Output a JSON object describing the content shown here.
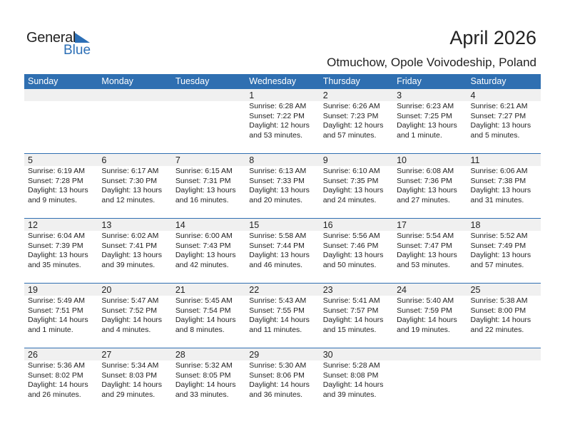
{
  "logo": {
    "text_general": "General",
    "text_blue": "Blue"
  },
  "title": "April 2026",
  "location": "Otmuchow, Opole Voivodeship, Poland",
  "colors": {
    "header": "#2f6fb1",
    "accent": "#2c6fb6"
  },
  "weekdays": [
    "Sunday",
    "Monday",
    "Tuesday",
    "Wednesday",
    "Thursday",
    "Friday",
    "Saturday"
  ],
  "weeks": [
    [
      null,
      null,
      null,
      {
        "day": "1",
        "sunrise": "Sunrise: 6:28 AM",
        "sunset": "Sunset: 7:22 PM",
        "daylight1": "Daylight: 12 hours",
        "daylight2": "and 53 minutes."
      },
      {
        "day": "2",
        "sunrise": "Sunrise: 6:26 AM",
        "sunset": "Sunset: 7:23 PM",
        "daylight1": "Daylight: 12 hours",
        "daylight2": "and 57 minutes."
      },
      {
        "day": "3",
        "sunrise": "Sunrise: 6:23 AM",
        "sunset": "Sunset: 7:25 PM",
        "daylight1": "Daylight: 13 hours",
        "daylight2": "and 1 minute."
      },
      {
        "day": "4",
        "sunrise": "Sunrise: 6:21 AM",
        "sunset": "Sunset: 7:27 PM",
        "daylight1": "Daylight: 13 hours",
        "daylight2": "and 5 minutes."
      }
    ],
    [
      {
        "day": "5",
        "sunrise": "Sunrise: 6:19 AM",
        "sunset": "Sunset: 7:28 PM",
        "daylight1": "Daylight: 13 hours",
        "daylight2": "and 9 minutes."
      },
      {
        "day": "6",
        "sunrise": "Sunrise: 6:17 AM",
        "sunset": "Sunset: 7:30 PM",
        "daylight1": "Daylight: 13 hours",
        "daylight2": "and 12 minutes."
      },
      {
        "day": "7",
        "sunrise": "Sunrise: 6:15 AM",
        "sunset": "Sunset: 7:31 PM",
        "daylight1": "Daylight: 13 hours",
        "daylight2": "and 16 minutes."
      },
      {
        "day": "8",
        "sunrise": "Sunrise: 6:13 AM",
        "sunset": "Sunset: 7:33 PM",
        "daylight1": "Daylight: 13 hours",
        "daylight2": "and 20 minutes."
      },
      {
        "day": "9",
        "sunrise": "Sunrise: 6:10 AM",
        "sunset": "Sunset: 7:35 PM",
        "daylight1": "Daylight: 13 hours",
        "daylight2": "and 24 minutes."
      },
      {
        "day": "10",
        "sunrise": "Sunrise: 6:08 AM",
        "sunset": "Sunset: 7:36 PM",
        "daylight1": "Daylight: 13 hours",
        "daylight2": "and 27 minutes."
      },
      {
        "day": "11",
        "sunrise": "Sunrise: 6:06 AM",
        "sunset": "Sunset: 7:38 PM",
        "daylight1": "Daylight: 13 hours",
        "daylight2": "and 31 minutes."
      }
    ],
    [
      {
        "day": "12",
        "sunrise": "Sunrise: 6:04 AM",
        "sunset": "Sunset: 7:39 PM",
        "daylight1": "Daylight: 13 hours",
        "daylight2": "and 35 minutes."
      },
      {
        "day": "13",
        "sunrise": "Sunrise: 6:02 AM",
        "sunset": "Sunset: 7:41 PM",
        "daylight1": "Daylight: 13 hours",
        "daylight2": "and 39 minutes."
      },
      {
        "day": "14",
        "sunrise": "Sunrise: 6:00 AM",
        "sunset": "Sunset: 7:43 PM",
        "daylight1": "Daylight: 13 hours",
        "daylight2": "and 42 minutes."
      },
      {
        "day": "15",
        "sunrise": "Sunrise: 5:58 AM",
        "sunset": "Sunset: 7:44 PM",
        "daylight1": "Daylight: 13 hours",
        "daylight2": "and 46 minutes."
      },
      {
        "day": "16",
        "sunrise": "Sunrise: 5:56 AM",
        "sunset": "Sunset: 7:46 PM",
        "daylight1": "Daylight: 13 hours",
        "daylight2": "and 50 minutes."
      },
      {
        "day": "17",
        "sunrise": "Sunrise: 5:54 AM",
        "sunset": "Sunset: 7:47 PM",
        "daylight1": "Daylight: 13 hours",
        "daylight2": "and 53 minutes."
      },
      {
        "day": "18",
        "sunrise": "Sunrise: 5:52 AM",
        "sunset": "Sunset: 7:49 PM",
        "daylight1": "Daylight: 13 hours",
        "daylight2": "and 57 minutes."
      }
    ],
    [
      {
        "day": "19",
        "sunrise": "Sunrise: 5:49 AM",
        "sunset": "Sunset: 7:51 PM",
        "daylight1": "Daylight: 14 hours",
        "daylight2": "and 1 minute."
      },
      {
        "day": "20",
        "sunrise": "Sunrise: 5:47 AM",
        "sunset": "Sunset: 7:52 PM",
        "daylight1": "Daylight: 14 hours",
        "daylight2": "and 4 minutes."
      },
      {
        "day": "21",
        "sunrise": "Sunrise: 5:45 AM",
        "sunset": "Sunset: 7:54 PM",
        "daylight1": "Daylight: 14 hours",
        "daylight2": "and 8 minutes."
      },
      {
        "day": "22",
        "sunrise": "Sunrise: 5:43 AM",
        "sunset": "Sunset: 7:55 PM",
        "daylight1": "Daylight: 14 hours",
        "daylight2": "and 11 minutes."
      },
      {
        "day": "23",
        "sunrise": "Sunrise: 5:41 AM",
        "sunset": "Sunset: 7:57 PM",
        "daylight1": "Daylight: 14 hours",
        "daylight2": "and 15 minutes."
      },
      {
        "day": "24",
        "sunrise": "Sunrise: 5:40 AM",
        "sunset": "Sunset: 7:59 PM",
        "daylight1": "Daylight: 14 hours",
        "daylight2": "and 19 minutes."
      },
      {
        "day": "25",
        "sunrise": "Sunrise: 5:38 AM",
        "sunset": "Sunset: 8:00 PM",
        "daylight1": "Daylight: 14 hours",
        "daylight2": "and 22 minutes."
      }
    ],
    [
      {
        "day": "26",
        "sunrise": "Sunrise: 5:36 AM",
        "sunset": "Sunset: 8:02 PM",
        "daylight1": "Daylight: 14 hours",
        "daylight2": "and 26 minutes."
      },
      {
        "day": "27",
        "sunrise": "Sunrise: 5:34 AM",
        "sunset": "Sunset: 8:03 PM",
        "daylight1": "Daylight: 14 hours",
        "daylight2": "and 29 minutes."
      },
      {
        "day": "28",
        "sunrise": "Sunrise: 5:32 AM",
        "sunset": "Sunset: 8:05 PM",
        "daylight1": "Daylight: 14 hours",
        "daylight2": "and 33 minutes."
      },
      {
        "day": "29",
        "sunrise": "Sunrise: 5:30 AM",
        "sunset": "Sunset: 8:06 PM",
        "daylight1": "Daylight: 14 hours",
        "daylight2": "and 36 minutes."
      },
      {
        "day": "30",
        "sunrise": "Sunrise: 5:28 AM",
        "sunset": "Sunset: 8:08 PM",
        "daylight1": "Daylight: 14 hours",
        "daylight2": "and 39 minutes."
      },
      null,
      null
    ]
  ]
}
